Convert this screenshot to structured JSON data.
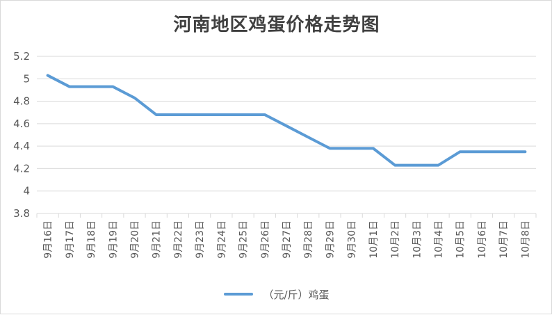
{
  "chart_data": {
    "type": "line",
    "title": "河南地区鸡蛋价格走势图",
    "xlabel": "",
    "ylabel": "",
    "categories": [
      "9月16日",
      "9月17日",
      "9月18日",
      "9月19日",
      "9月20日",
      "9月21日",
      "9月22日",
      "9月23日",
      "9月24日",
      "9月25日",
      "9月26日",
      "9月27日",
      "9月28日",
      "9月29日",
      "9月30日",
      "10月1日",
      "10月2日",
      "10月3日",
      "10月4日",
      "10月5日",
      "10月6日",
      "10月7日",
      "10月8日"
    ],
    "series": [
      {
        "name": "（元/斤）鸡蛋",
        "values": [
          5.03,
          4.93,
          4.93,
          4.93,
          4.83,
          4.68,
          4.68,
          4.68,
          4.68,
          4.68,
          4.68,
          4.58,
          4.48,
          4.38,
          4.38,
          4.38,
          4.23,
          4.23,
          4.23,
          4.35,
          4.35,
          4.35,
          4.35
        ],
        "color": "#5b9bd5"
      }
    ],
    "ylim": [
      3.8,
      5.2
    ],
    "yticks": [
      3.8,
      4,
      4.2,
      4.4,
      4.6,
      4.8,
      5,
      5.2
    ],
    "grid": true,
    "legend": "bottom"
  }
}
